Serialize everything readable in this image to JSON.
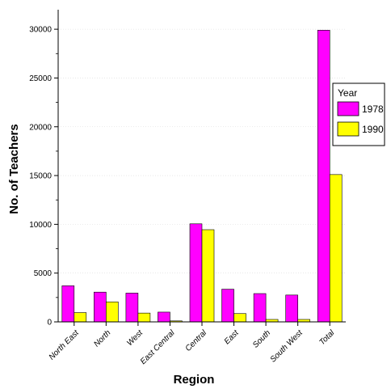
{
  "chart_data": {
    "type": "bar",
    "title": "",
    "xlabel": "Region",
    "ylabel": "No. of Teachers",
    "categories": [
      "North East",
      "North",
      "West",
      "East Central",
      "Central",
      "East",
      "South",
      "South West",
      "Total"
    ],
    "series": [
      {
        "name": "1978",
        "values": [
          3700,
          3050,
          2950,
          1000,
          10050,
          3350,
          2900,
          2750,
          29900
        ],
        "color": "#ff00ff"
      },
      {
        "name": "1990",
        "values": [
          950,
          2050,
          900,
          100,
          9450,
          850,
          250,
          250,
          15100
        ],
        "color": "#ffff00"
      }
    ],
    "ylim": [
      0,
      32000
    ],
    "yticks": [
      0,
      5000,
      10000,
      15000,
      20000,
      25000,
      30000
    ],
    "grid": true,
    "legend": {
      "title": "Year",
      "position": "right"
    }
  }
}
